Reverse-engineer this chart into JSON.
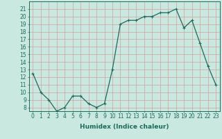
{
  "x": [
    0,
    1,
    2,
    3,
    4,
    5,
    6,
    7,
    8,
    9,
    10,
    11,
    12,
    13,
    14,
    15,
    16,
    17,
    18,
    19,
    20,
    21,
    22,
    23
  ],
  "y": [
    12.5,
    10.0,
    9.0,
    7.5,
    8.0,
    9.5,
    9.5,
    8.5,
    8.0,
    8.5,
    13.0,
    19.0,
    19.5,
    19.5,
    20.0,
    20.0,
    20.5,
    20.5,
    21.0,
    18.5,
    19.5,
    16.5,
    13.5,
    11.0
  ],
  "line_color": "#1a6b5a",
  "marker": "+",
  "marker_size": 3.0,
  "linewidth": 0.9,
  "background_color": "#c8e8e0",
  "grid_color": "#b0d4cc",
  "xlabel": "Humidex (Indice chaleur)",
  "xlabel_fontsize": 6.5,
  "tick_fontsize": 5.5,
  "ylim": [
    7.5,
    22
  ],
  "xlim": [
    -0.5,
    23.5
  ],
  "yticks": [
    8,
    9,
    10,
    11,
    12,
    13,
    14,
    15,
    16,
    17,
    18,
    19,
    20,
    21
  ],
  "xticks": [
    0,
    1,
    2,
    3,
    4,
    5,
    6,
    7,
    8,
    9,
    10,
    11,
    12,
    13,
    14,
    15,
    16,
    17,
    18,
    19,
    20,
    21,
    22,
    23
  ]
}
